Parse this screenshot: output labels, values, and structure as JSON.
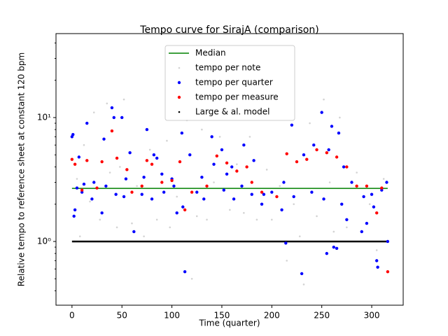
{
  "chart_data": {
    "type": "scatter",
    "title": "Tempo curve for SirajA (comparison)",
    "x_label": "Time (quarter)",
    "y_label": "Relative tempo to reference sheet at constant 120 bpm",
    "xlim": [
      -16,
      331.5
    ],
    "ylim": [
      0.306,
      47.6
    ],
    "log_y": true,
    "legend": "upper center",
    "xticks": [
      0,
      50,
      100,
      150,
      200,
      250,
      300
    ],
    "yticks": [
      {
        "value": 1,
        "label": "10⁰"
      },
      {
        "value": 10,
        "label": "10¹"
      }
    ],
    "yminor": [
      0.4,
      0.5,
      0.6,
      0.7,
      0.8,
      0.9,
      2,
      3,
      4,
      5,
      6,
      7,
      8,
      9,
      20,
      30,
      40
    ],
    "series": [
      {
        "name": "Median",
        "color": "#008000",
        "marker": "line",
        "x": [
          0,
          316
        ],
        "values": [
          2.68,
          2.68
        ]
      },
      {
        "name": "tempo per note",
        "color": "#d3d3d3",
        "marker": ".",
        "x": [
          2,
          5,
          8,
          12,
          18,
          22,
          28,
          35,
          38,
          45,
          48,
          52,
          60,
          65,
          72,
          78,
          85,
          95,
          98,
          105,
          115,
          120,
          125,
          130,
          135,
          142,
          148,
          158,
          165,
          172,
          178,
          185,
          195,
          200,
          208,
          215,
          222,
          228,
          232,
          238,
          245,
          252,
          258,
          262,
          268,
          275,
          285,
          290,
          298,
          305,
          312
        ],
        "values": [
          1.0,
          3.2,
          1.1,
          6,
          2.1,
          11,
          1.5,
          13,
          3.6,
          1.3,
          4,
          14,
          1.4,
          2.8,
          1.1,
          5.5,
          1.5,
          6.5,
          1.3,
          2.3,
          9.5,
          0.5,
          1.6,
          8,
          1.5,
          3,
          7,
          1.8,
          4.2,
          1.7,
          7,
          1.5,
          3.8,
          1.5,
          2.8,
          0.7,
          2,
          1.1,
          0.45,
          9,
          1.6,
          14,
          3,
          1.2,
          10,
          1.3,
          3.6,
          1.2,
          2,
          0.85,
          3.2
        ]
      },
      {
        "name": "tempo per quarter",
        "color": "#0000ff",
        "marker": "o",
        "x": [
          0,
          1,
          2,
          3,
          5,
          7,
          10,
          12,
          15,
          20,
          22,
          30,
          32,
          34,
          40,
          42,
          44,
          50,
          52,
          54,
          58,
          62,
          70,
          72,
          75,
          80,
          82,
          85,
          90,
          92,
          100,
          102,
          105,
          110,
          111,
          113,
          118,
          125,
          130,
          132,
          140,
          142,
          150,
          152,
          155,
          160,
          162,
          170,
          172,
          180,
          182,
          190,
          192,
          200,
          210,
          212,
          214,
          220,
          222,
          230,
          232,
          240,
          242,
          250,
          252,
          255,
          257,
          260,
          262,
          265,
          267,
          270,
          272,
          275,
          280,
          290,
          292,
          295,
          300,
          302,
          305,
          306,
          310,
          315,
          316
        ],
        "values": [
          7,
          7.3,
          1.6,
          1.8,
          2.7,
          4.8,
          2.5,
          2.9,
          9,
          2.2,
          3,
          1.7,
          6.7,
          2.8,
          12,
          10,
          2.4,
          10,
          2.3,
          3.2,
          5.2,
          1.2,
          2.4,
          3.3,
          8,
          2.2,
          5,
          4.7,
          3.5,
          2.5,
          3.2,
          2.8,
          1.7,
          7.5,
          1.9,
          0.57,
          5,
          2.5,
          3.3,
          2.2,
          7,
          4.2,
          5.5,
          2.6,
          3.5,
          4,
          2.2,
          2.8,
          6,
          2.4,
          4.5,
          2,
          2.4,
          2.5,
          1.8,
          3,
          0.97,
          8.7,
          2.3,
          0.55,
          5,
          2.5,
          6,
          11,
          2.2,
          0.8,
          5.5,
          8.5,
          0.9,
          0.88,
          7.5,
          2,
          4,
          1.5,
          3,
          1.2,
          2.3,
          1.4,
          2.4,
          1.9,
          0.7,
          0.62,
          2.6,
          3,
          1.0
        ]
      },
      {
        "name": "tempo per measure",
        "color": "#ff0000",
        "marker": "o",
        "x": [
          0,
          3,
          10,
          15,
          25,
          30,
          40,
          45,
          55,
          60,
          70,
          75,
          80,
          90,
          100,
          108,
          113,
          120,
          135,
          145,
          155,
          165,
          175,
          180,
          190,
          205,
          215,
          225,
          235,
          245,
          255,
          265,
          275,
          285,
          295,
          305,
          310,
          316
        ],
        "values": [
          4.6,
          4.2,
          2.6,
          4.5,
          2.7,
          4.4,
          7.8,
          4.7,
          3.8,
          2.5,
          2.8,
          4.5,
          4.2,
          3.0,
          3.1,
          4.4,
          1.8,
          2.5,
          2.8,
          4.9,
          4.3,
          3.7,
          4.0,
          3.0,
          2.5,
          2.3,
          5.1,
          4.4,
          4.6,
          5.5,
          5.2,
          4.8,
          4.0,
          2.8,
          2.8,
          1.7,
          2.7,
          0.57
        ]
      },
      {
        "name": "Large & al. model",
        "color": "#000000",
        "marker": "dots",
        "x": [
          0,
          316
        ],
        "values": [
          1,
          1
        ]
      }
    ]
  }
}
